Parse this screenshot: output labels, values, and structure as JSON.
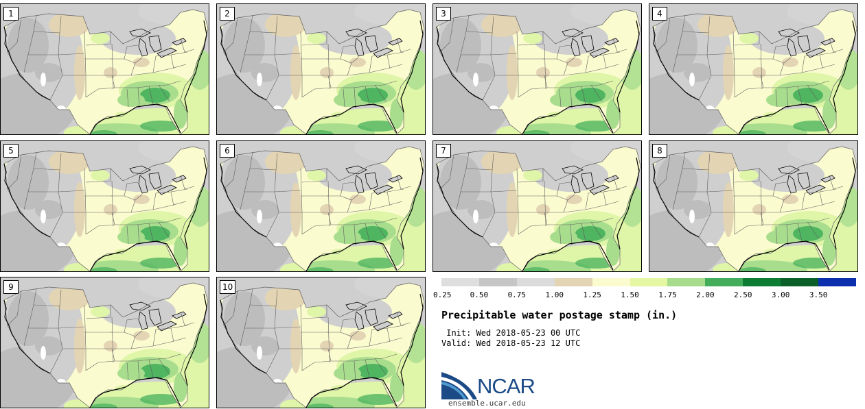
{
  "panels": [
    {
      "label": "1"
    },
    {
      "label": "2"
    },
    {
      "label": "3"
    },
    {
      "label": "4"
    },
    {
      "label": "5"
    },
    {
      "label": "6"
    },
    {
      "label": "7"
    },
    {
      "label": "8"
    },
    {
      "label": "9"
    },
    {
      "label": "10"
    }
  ],
  "map_colors": {
    "very_dry": "#ffffff",
    "dry": "#cfcfcf",
    "mid_gray": "#bdbdbd",
    "tan": "#e3d5b4",
    "pale_yellow": "#fbfbd0",
    "light_green": "#dff5a8",
    "green": "#a9dd8e",
    "mid_green": "#4fb560",
    "dark_green": "#1f8a3c",
    "boundary": "#5e5e5e",
    "coast": "#000000"
  },
  "colorbar": {
    "colors": [
      "#dedede",
      "#c6c6c6",
      "#dbdbdb",
      "#e3d5b4",
      "#fbfbd0",
      "#e6f7a4",
      "#a8dc8d",
      "#44ad5c",
      "#0d7d34",
      "#0b5f29",
      "#0c2fae"
    ],
    "ticks": [
      "0.25",
      "0.50",
      "0.75",
      "1.00",
      "1.25",
      "1.50",
      "1.75",
      "2.00",
      "2.50",
      "3.00",
      "3.50"
    ]
  },
  "title": "Precipitable water postage stamp (in.)",
  "init": " Init: Wed 2018-05-23 00 UTC",
  "valid": "Valid: Wed 2018-05-23 12 UTC",
  "logo": {
    "wordmark": "NCAR",
    "url": "ensemble.ucar.edu",
    "colors": {
      "blue": "#1b4a86",
      "light_blue": "#4f9ad0"
    }
  }
}
